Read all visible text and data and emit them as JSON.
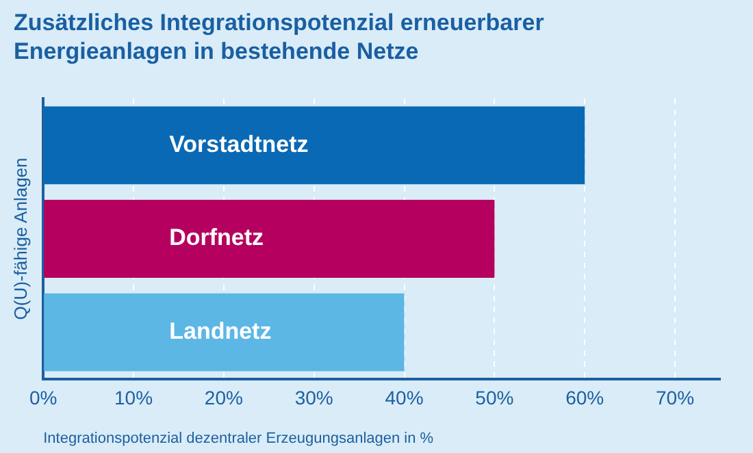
{
  "chart_data": {
    "type": "bar",
    "orientation": "horizontal",
    "title": "Zusätzliches Integrationspotenzial erneuerbarer Energieanlagen in bestehende Netze",
    "xlabel": "Integrationspotenzial dezentraler Erzeugungsanlagen in %",
    "ylabel": "Q(U)-fähige Anlagen",
    "categories": [
      "Vorstadtnetz",
      "Dorfnetz",
      "Landnetz"
    ],
    "values": [
      60,
      50,
      40
    ],
    "colors": [
      "#0a69b4",
      "#b6005f",
      "#5cb7e5"
    ],
    "xlim": [
      0,
      75
    ],
    "xticks": [
      {
        "value": 0,
        "label": "0%"
      },
      {
        "value": 10,
        "label": "10%"
      },
      {
        "value": 20,
        "label": "20%"
      },
      {
        "value": 30,
        "label": "30%"
      },
      {
        "value": 40,
        "label": "40%"
      },
      {
        "value": 50,
        "label": "50%"
      },
      {
        "value": 60,
        "label": "60%"
      },
      {
        "value": 70,
        "label": "70%"
      }
    ],
    "grid": "x",
    "legend": false
  }
}
